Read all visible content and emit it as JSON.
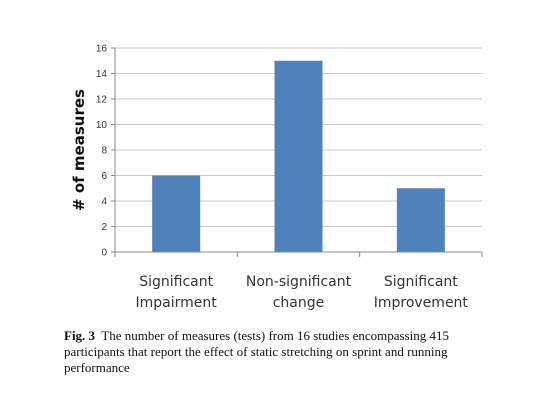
{
  "chart_data": {
    "type": "bar",
    "categories": [
      [
        "Significant",
        "Impairment"
      ],
      [
        "Non-significant",
        "change"
      ],
      [
        "Significant",
        "Improvement"
      ]
    ],
    "values": [
      6,
      15,
      5
    ],
    "ylabel": "# of measures",
    "xlabel": "",
    "ylim": [
      0,
      16
    ],
    "yticks": [
      0,
      2,
      4,
      6,
      8,
      10,
      12,
      14,
      16
    ],
    "grid": true,
    "legend": "none",
    "bar_color": "#4f81bd",
    "grid_color": "#c8c8c8"
  },
  "caption": {
    "label": "Fig. 3",
    "text": "The number of measures (tests) from 16 studies encompassing 415 participants that report the effect of static stretching on sprint and running performance"
  }
}
